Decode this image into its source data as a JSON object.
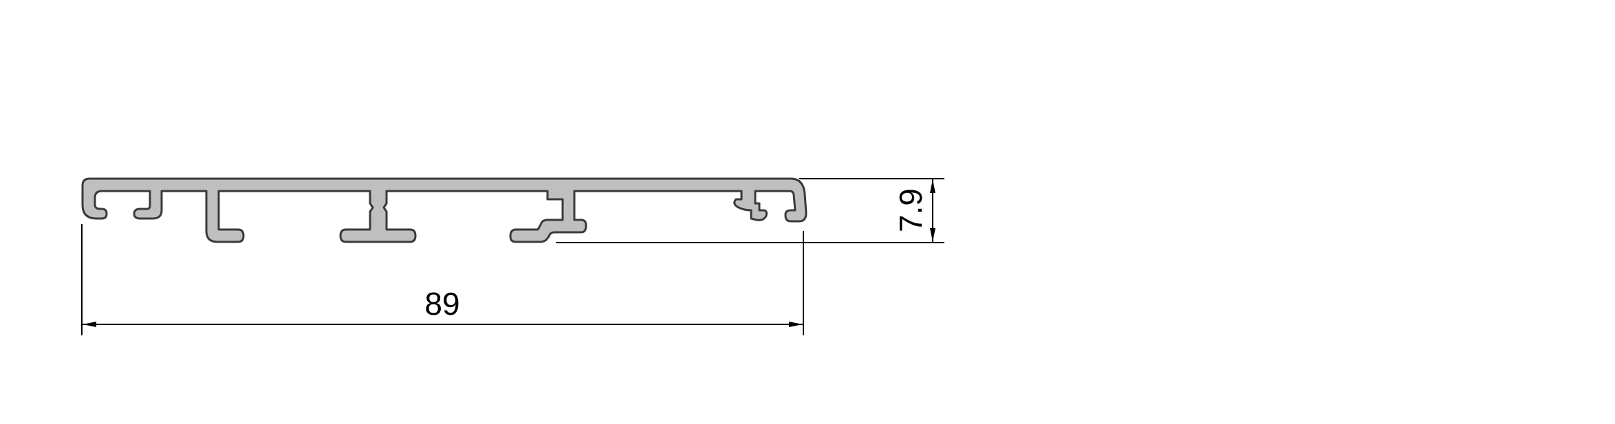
{
  "drawing": {
    "dimensions": {
      "width": "89",
      "height": "7.9"
    },
    "colors": {
      "profile_fill": "#bfbfbf",
      "profile_stroke": "#3a3a3a",
      "line": "#000000",
      "background": "#ffffff"
    }
  }
}
